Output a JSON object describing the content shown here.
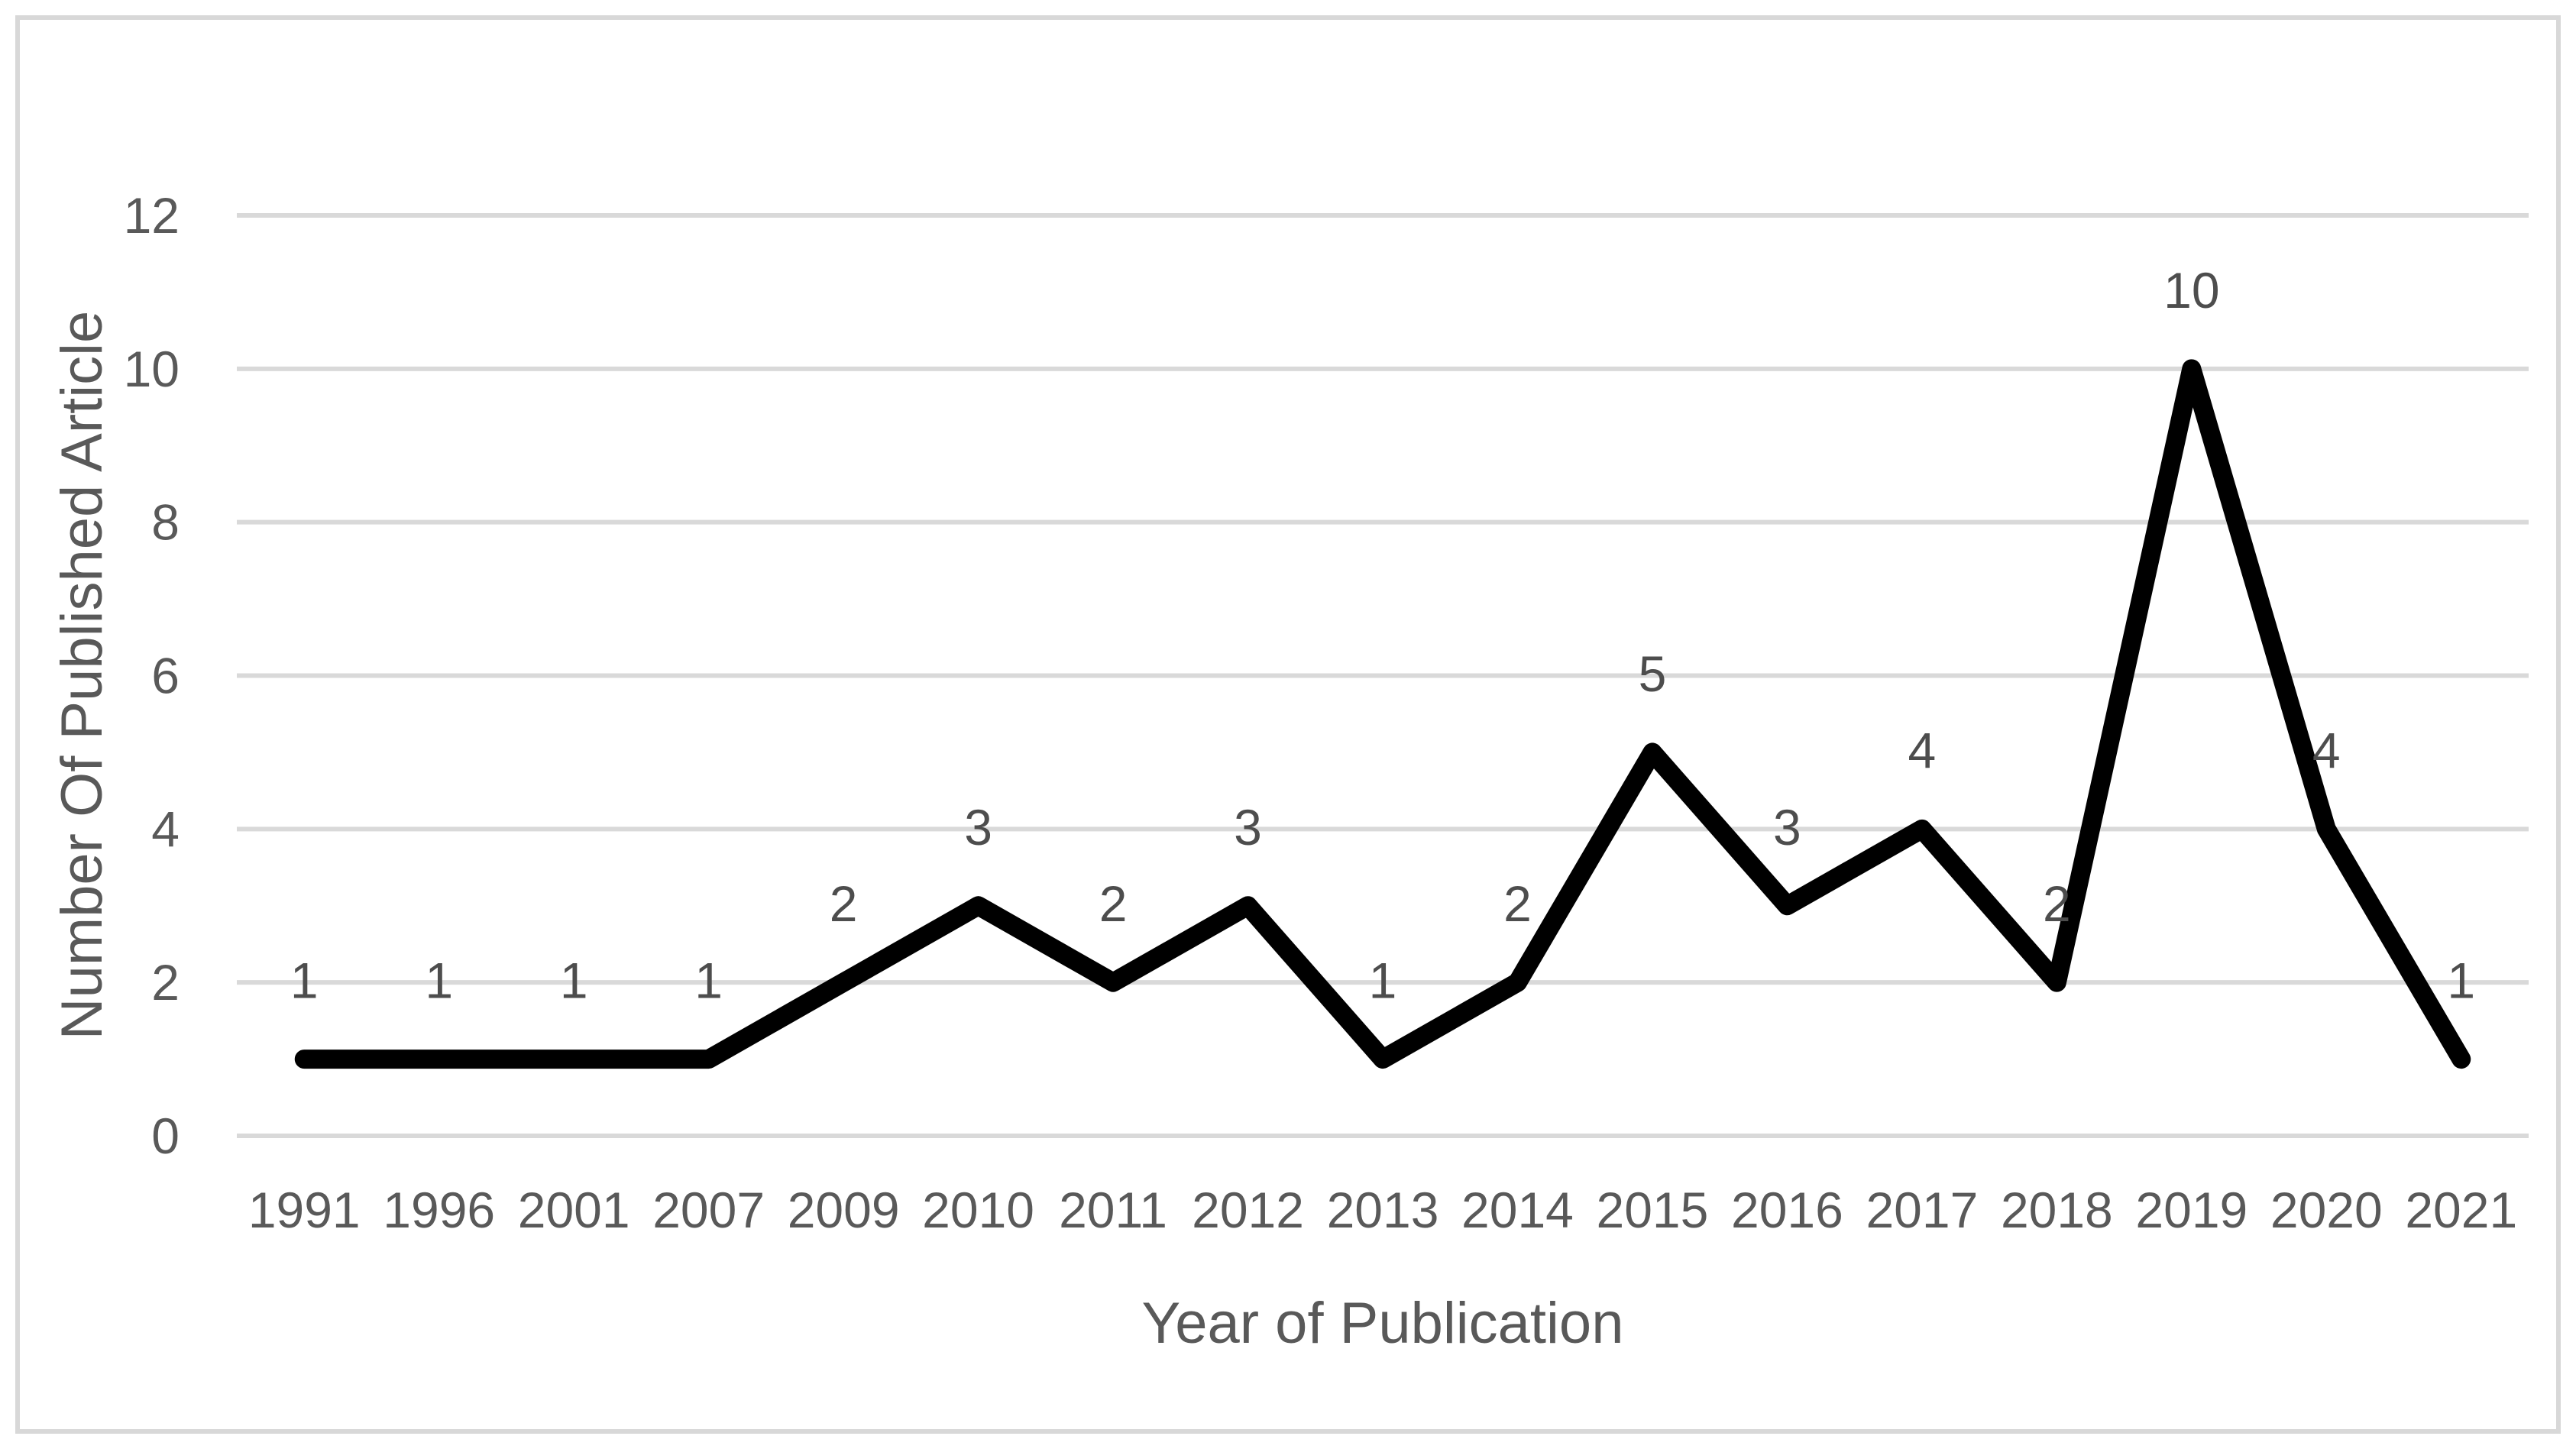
{
  "chart_data": {
    "type": "line",
    "title": "",
    "xlabel": "Year of Publication",
    "ylabel": "Number Of Published Article",
    "categories": [
      "1991",
      "1996",
      "2001",
      "2007",
      "2009",
      "2010",
      "2011",
      "2012",
      "2013",
      "2014",
      "2015",
      "2016",
      "2017",
      "2018",
      "2019",
      "2020",
      "2021"
    ],
    "values": [
      1,
      1,
      1,
      1,
      2,
      3,
      2,
      3,
      1,
      2,
      5,
      3,
      4,
      2,
      10,
      4,
      1
    ],
    "data_labels_shown": true,
    "ylim": [
      0,
      12
    ],
    "yticks": [
      0,
      2,
      4,
      6,
      8,
      10,
      12
    ],
    "grid": "horizontal",
    "legend": false,
    "colors": {
      "series_line": "#000000",
      "gridline": "#d9d9d9",
      "tick_text": "#595959",
      "axis_title_text": "#595959",
      "data_label_text": "#4d4d4d",
      "background": "#ffffff",
      "frame_border": "#d8d8d8"
    }
  }
}
